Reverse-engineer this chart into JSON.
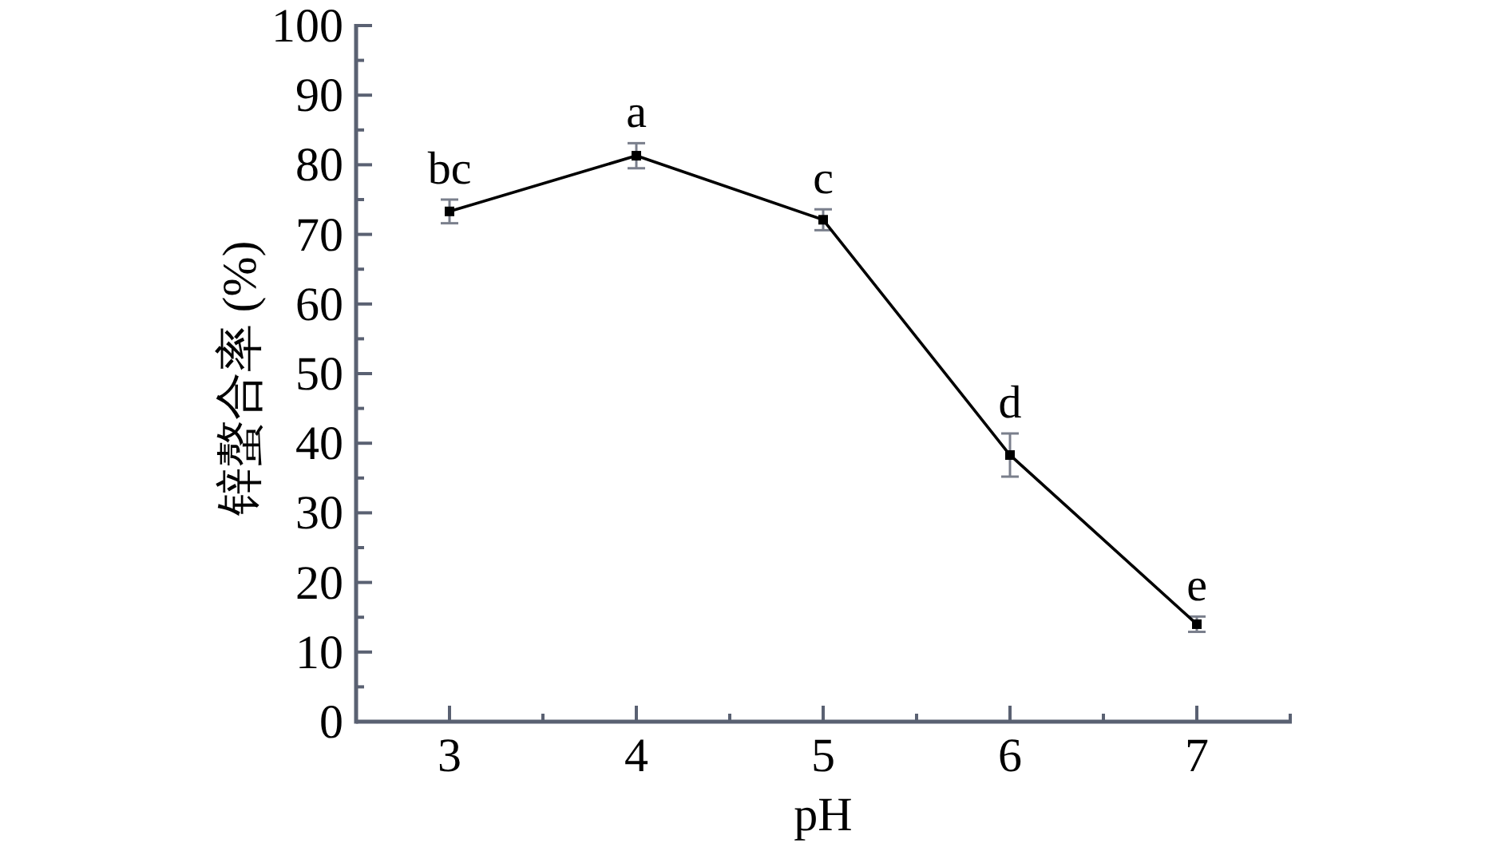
{
  "chart_data": {
    "type": "line",
    "xlabel": "pH",
    "ylabel": "锌螯合率 (%)",
    "x": [
      3,
      4,
      5,
      6,
      7
    ],
    "series": [
      {
        "color": "#000000",
        "values": [
          73.3,
          81.3,
          72.1,
          38.3,
          14.0
        ],
        "errors": [
          1.7,
          1.8,
          1.5,
          3.1,
          1.1
        ]
      }
    ],
    "xlim": [
      2.5,
      7.5
    ],
    "ylim": [
      0,
      100
    ],
    "xticks": [
      3,
      {
        "value": 3.5,
        "label": null
      },
      4,
      {
        "value": 4.5,
        "label": null
      },
      5,
      {
        "value": 5.5,
        "label": null
      },
      6,
      {
        "value": 6.5,
        "label": null
      },
      7,
      {
        "value": 7.5,
        "label": null
      }
    ],
    "yticks": [
      0,
      {
        "value": 5,
        "label": null
      },
      10,
      {
        "value": 15,
        "label": null
      },
      20,
      {
        "value": 25,
        "label": null
      },
      30,
      {
        "value": 35,
        "label": null
      },
      40,
      {
        "value": 45,
        "label": null
      },
      50,
      {
        "value": 55,
        "label": null
      },
      60,
      {
        "value": 65,
        "label": null
      },
      70,
      {
        "value": 75,
        "label": null
      },
      80,
      {
        "value": 85,
        "label": null
      },
      90,
      {
        "value": 95,
        "label": null
      },
      100
    ],
    "marker": "square",
    "line_style": "solid",
    "annotations": [
      {
        "text": "bc",
        "x": 3,
        "y": 73.3
      },
      {
        "text": "a",
        "x": 4,
        "y": 81.3
      },
      {
        "text": "c",
        "x": 5,
        "y": 72.1
      },
      {
        "text": "d",
        "x": 6,
        "y": 38.3
      },
      {
        "text": "e",
        "x": 7,
        "y": 14.0
      }
    ]
  }
}
